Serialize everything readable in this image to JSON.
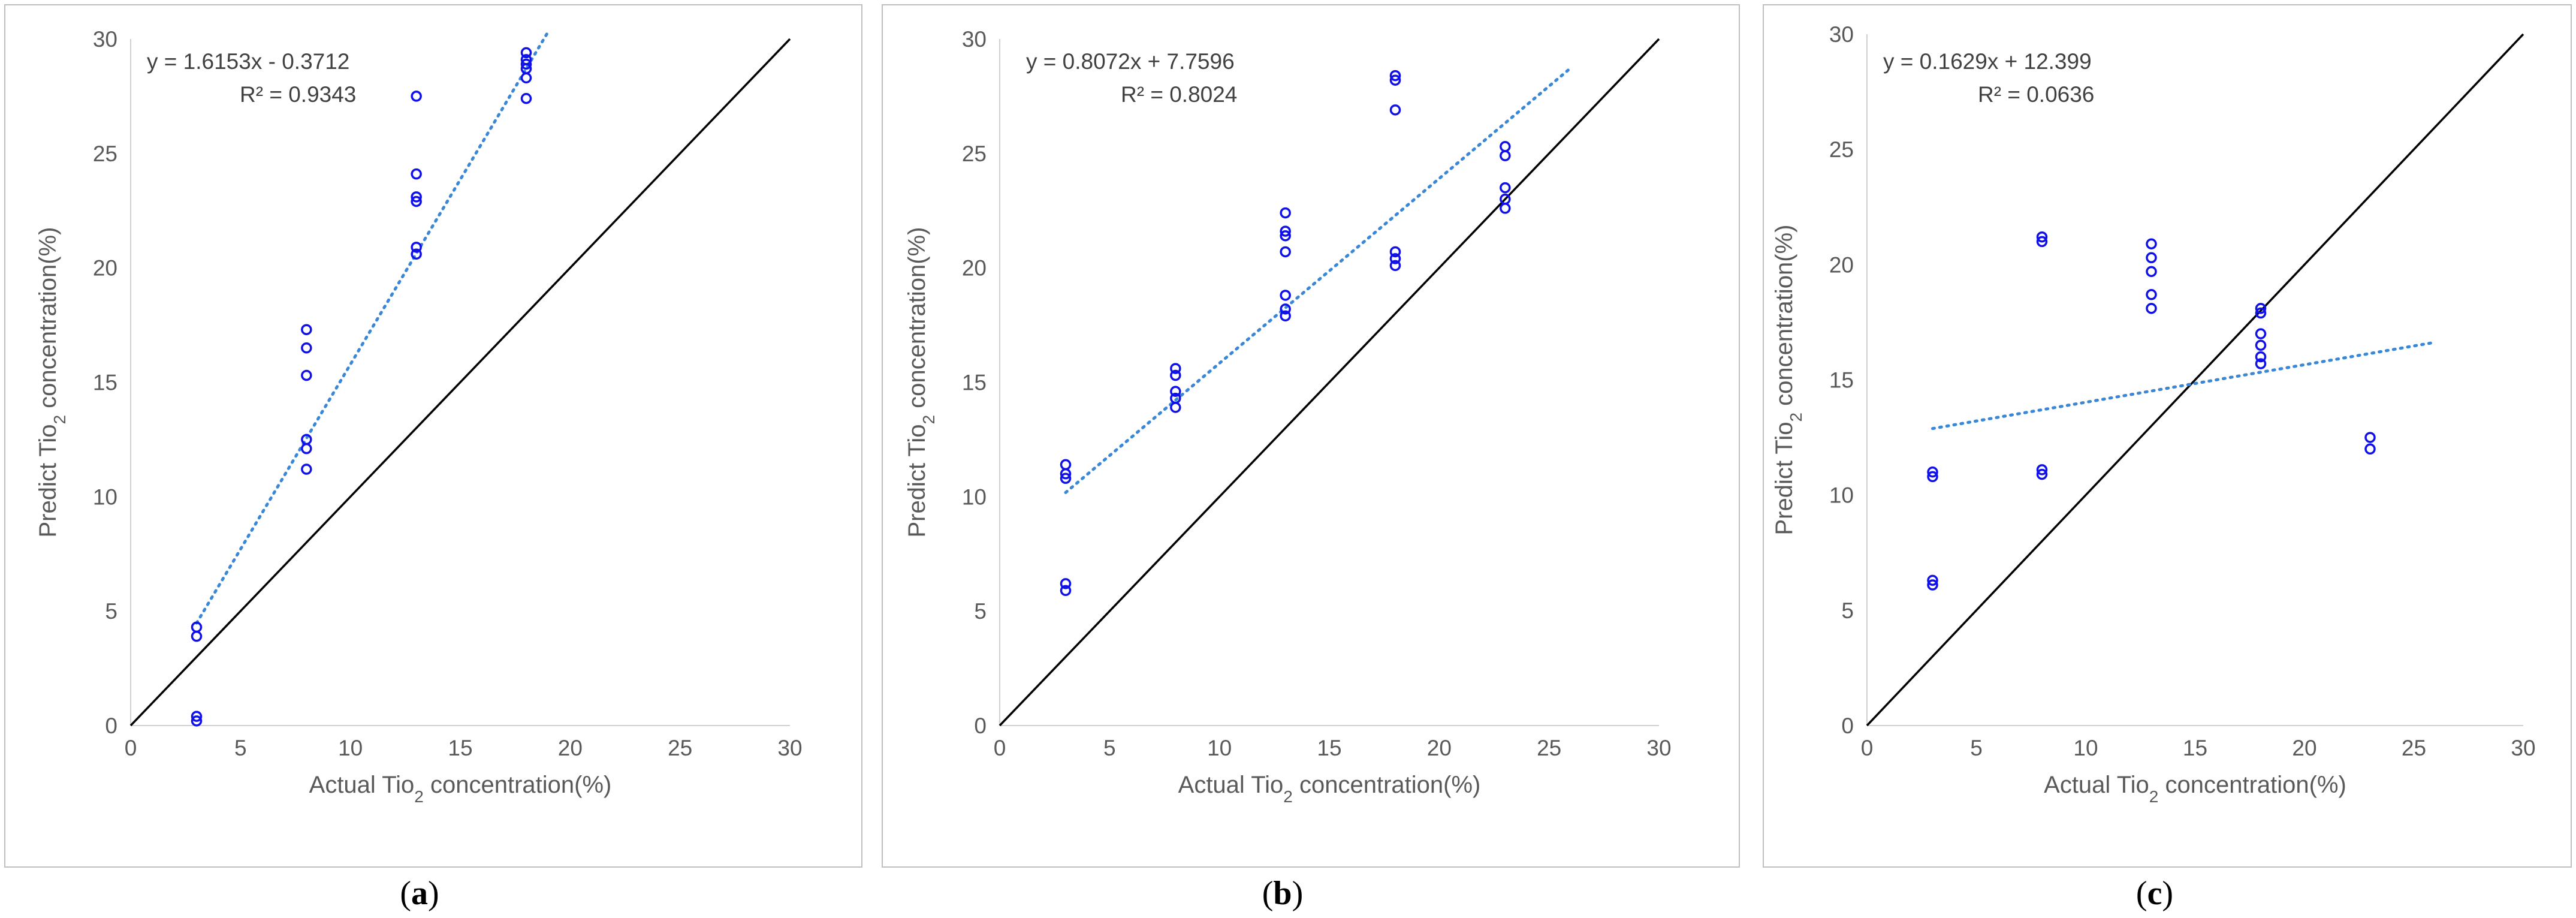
{
  "colors": {
    "points": "#1010e8",
    "trendline": "#3a87d6",
    "identity_line": "#000000",
    "axis": "#d0d0d0",
    "frame": "#bfbfbf",
    "tick_text": "#595959"
  },
  "chart_data": [
    {
      "type": "scatter",
      "panel_label": "(a)",
      "xlabel": "Actual Tio2 concentration(%)",
      "ylabel": "Predict Tio2 concentration(%)",
      "xlim": [
        0,
        30
      ],
      "ylim": [
        0,
        30
      ],
      "xticks": [
        0,
        5,
        10,
        15,
        20,
        25,
        30
      ],
      "yticks": [
        0,
        5,
        10,
        15,
        20,
        25,
        30
      ],
      "grid": false,
      "points": [
        [
          3,
          0.2
        ],
        [
          3,
          0.4
        ],
        [
          3,
          3.9
        ],
        [
          3,
          4.3
        ],
        [
          8,
          11.2
        ],
        [
          8,
          12.1
        ],
        [
          8,
          12.5
        ],
        [
          8,
          15.3
        ],
        [
          8,
          16.5
        ],
        [
          8,
          17.3
        ],
        [
          13,
          20.6
        ],
        [
          13,
          20.9
        ],
        [
          13,
          22.9
        ],
        [
          13,
          23.1
        ],
        [
          13,
          24.1
        ],
        [
          13,
          27.5
        ],
        [
          18,
          27.4
        ],
        [
          18,
          28.3
        ],
        [
          18,
          28.7
        ],
        [
          18,
          28.9
        ],
        [
          18,
          29.1
        ],
        [
          18,
          29.4
        ]
      ],
      "trendline": {
        "slope": 1.6153,
        "intercept": -0.3712,
        "x_range": [
          3,
          19
        ],
        "equation": "y = 1.6153x - 0.3712",
        "r2": "R² = 0.9343"
      },
      "identity_line": true
    },
    {
      "type": "scatter",
      "panel_label": "(b)",
      "xlabel": "Actual Tio2 concentration(%)",
      "ylabel": "Predict Tio2 concentration(%)",
      "xlim": [
        0,
        30
      ],
      "ylim": [
        0,
        30
      ],
      "xticks": [
        0,
        5,
        10,
        15,
        20,
        25,
        30
      ],
      "yticks": [
        0,
        5,
        10,
        15,
        20,
        25,
        30
      ],
      "grid": false,
      "points": [
        [
          3,
          5.9
        ],
        [
          3,
          6.2
        ],
        [
          3,
          10.8
        ],
        [
          3,
          11.0
        ],
        [
          3,
          11.4
        ],
        [
          8,
          13.9
        ],
        [
          8,
          14.3
        ],
        [
          8,
          14.6
        ],
        [
          8,
          15.3
        ],
        [
          8,
          15.6
        ],
        [
          13,
          17.9
        ],
        [
          13,
          18.2
        ],
        [
          13,
          18.8
        ],
        [
          13,
          20.7
        ],
        [
          13,
          21.4
        ],
        [
          13,
          21.6
        ],
        [
          13,
          22.4
        ],
        [
          18,
          20.1
        ],
        [
          18,
          20.4
        ],
        [
          18,
          20.7
        ],
        [
          18,
          26.9
        ],
        [
          18,
          28.2
        ],
        [
          18,
          28.4
        ],
        [
          23,
          22.6
        ],
        [
          23,
          23.0
        ],
        [
          23,
          23.5
        ],
        [
          23,
          24.9
        ],
        [
          23,
          25.3
        ]
      ],
      "trendline": {
        "slope": 0.8072,
        "intercept": 7.7596,
        "x_range": [
          3,
          26
        ],
        "equation": "y = 0.8072x + 7.7596",
        "r2": "R² = 0.8024"
      },
      "identity_line": true
    },
    {
      "type": "scatter",
      "panel_label": "(c)",
      "xlabel": "Actual Tio2 concentration(%)",
      "ylabel": "Predict Tio2 concentration(%)",
      "xlim": [
        0,
        30
      ],
      "ylim": [
        0,
        30
      ],
      "xticks": [
        0,
        5,
        10,
        15,
        20,
        25,
        30
      ],
      "yticks": [
        0,
        5,
        10,
        15,
        20,
        25,
        30
      ],
      "grid": false,
      "points": [
        [
          3,
          6.1
        ],
        [
          3,
          6.3
        ],
        [
          3,
          10.8
        ],
        [
          3,
          11.0
        ],
        [
          8,
          10.9
        ],
        [
          8,
          11.1
        ],
        [
          8,
          21.0
        ],
        [
          8,
          21.2
        ],
        [
          13,
          18.1
        ],
        [
          13,
          18.7
        ],
        [
          13,
          19.7
        ],
        [
          13,
          20.3
        ],
        [
          13,
          20.9
        ],
        [
          18,
          15.7
        ],
        [
          18,
          16.0
        ],
        [
          18,
          16.5
        ],
        [
          18,
          17.0
        ],
        [
          18,
          17.9
        ],
        [
          18,
          18.1
        ],
        [
          23,
          12.0
        ],
        [
          23,
          12.5
        ]
      ],
      "trendline": {
        "slope": 0.1629,
        "intercept": 12.399,
        "x_range": [
          3,
          26
        ],
        "equation": "y = 0.1629x + 12.399",
        "r2": "R² = 0.0636"
      },
      "identity_line": true
    }
  ]
}
